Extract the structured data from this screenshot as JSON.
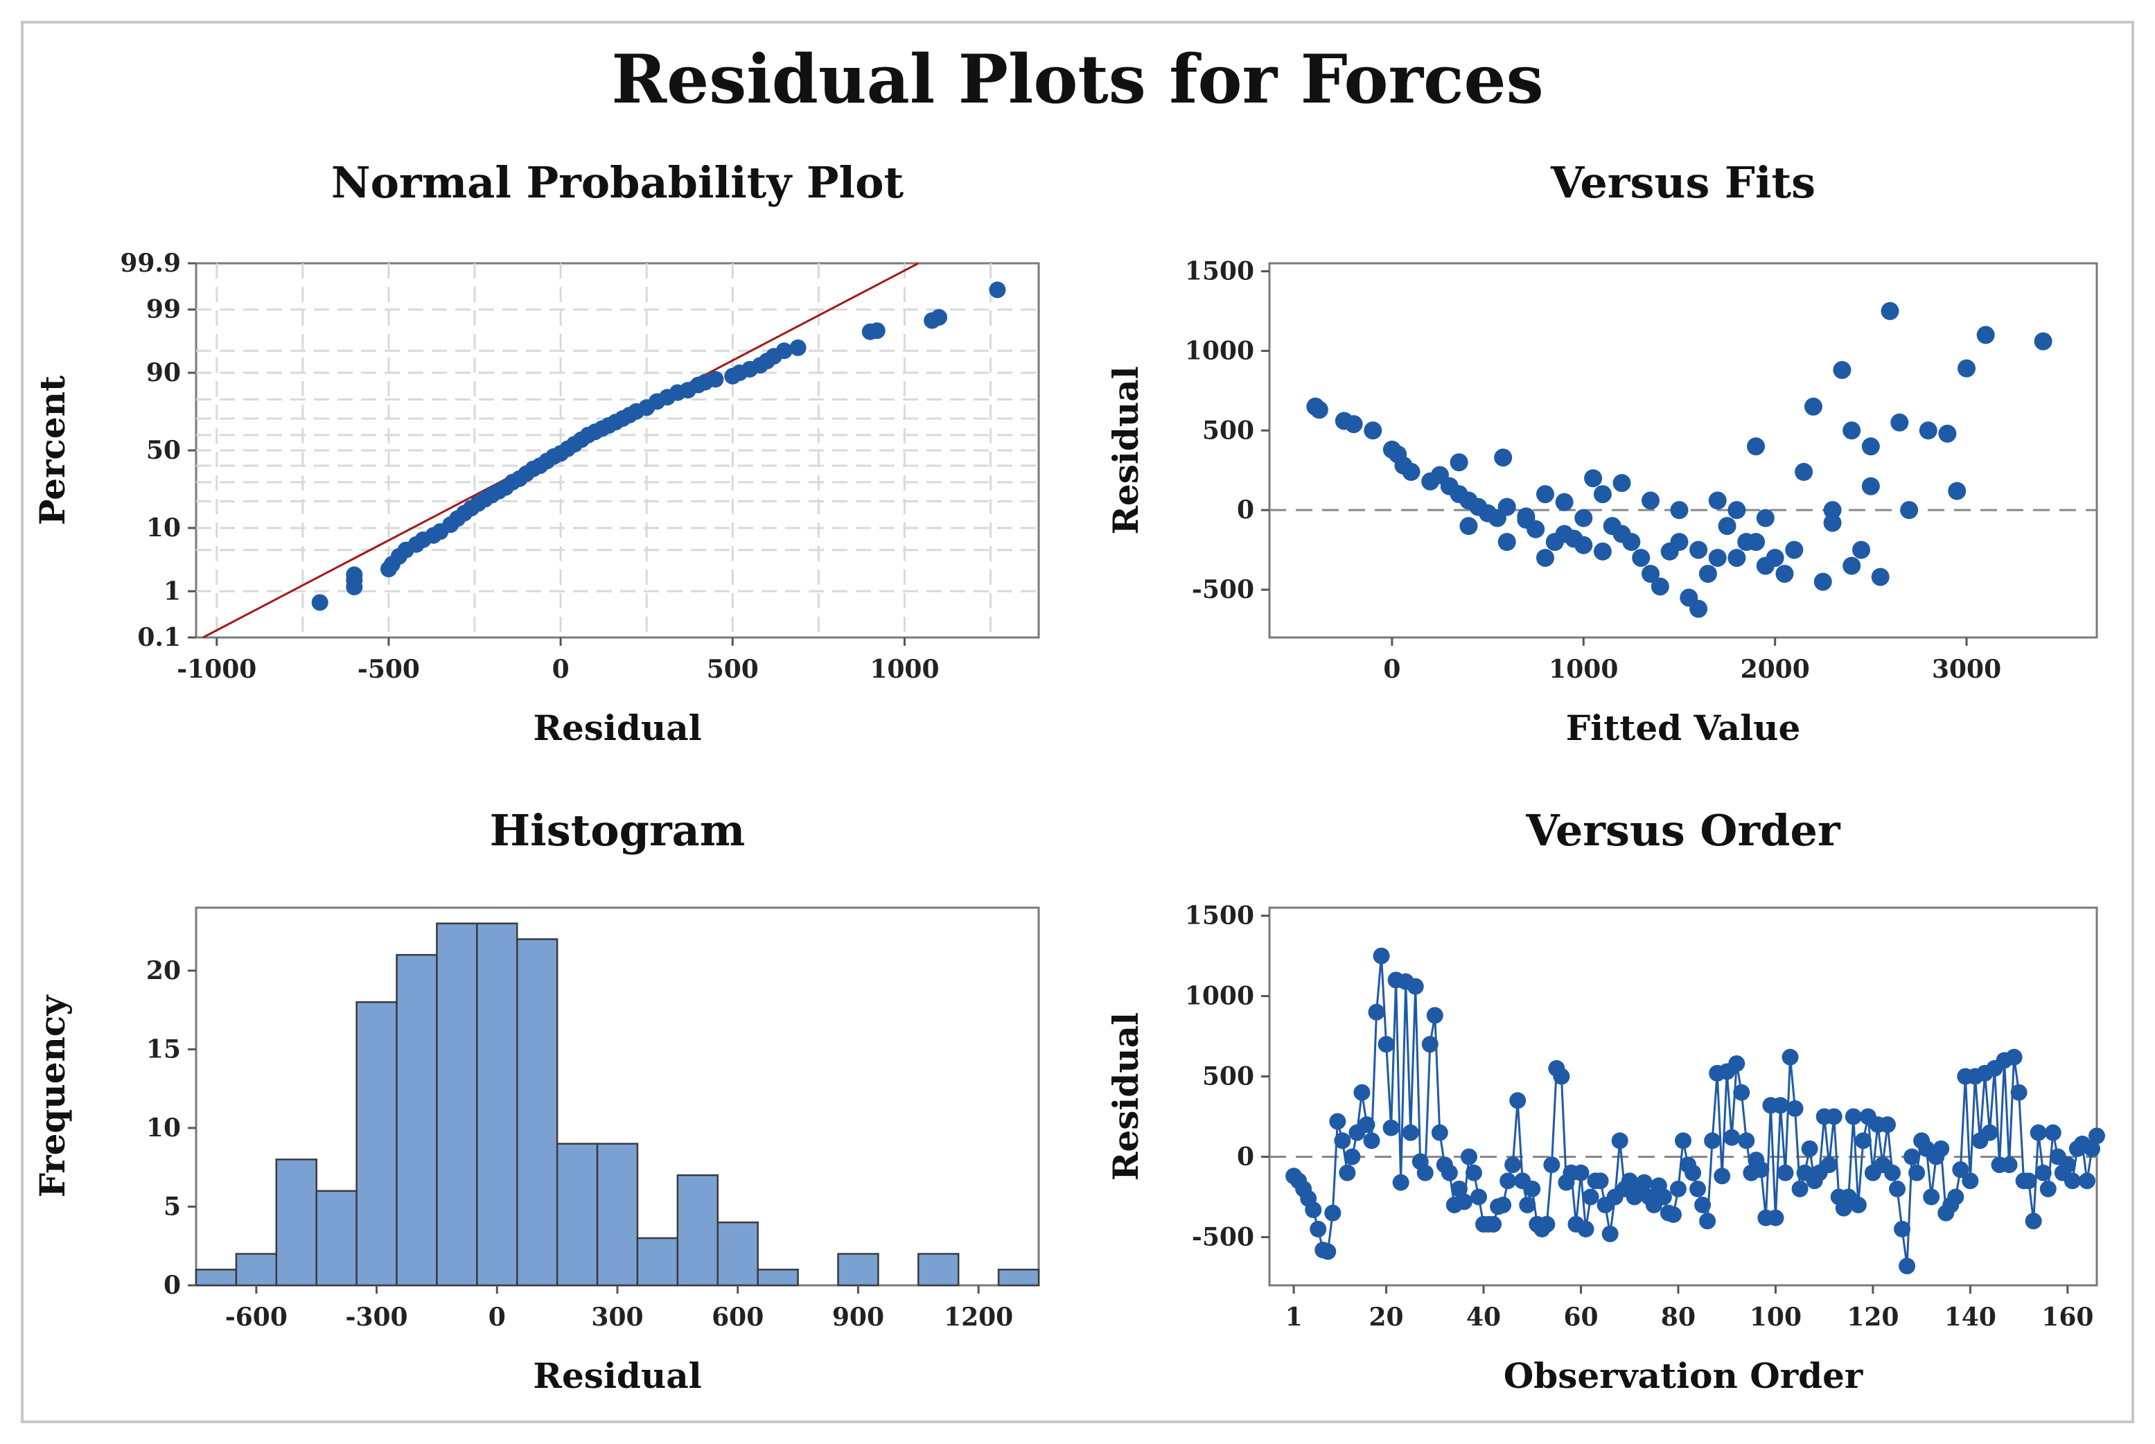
{
  "figure_title": "Residual Plots for Forces",
  "colors": {
    "point": "#1f5aa6",
    "bar_fill": "#7ba1d3",
    "bar_stroke": "#3b3b3b",
    "fit_line": "#a31919",
    "grid": "#d9d9d9",
    "ref_line": "#888888"
  },
  "chart_data": [
    {
      "id": "npp",
      "type": "scatter",
      "title": "Normal Probability Plot",
      "xlabel": "Residual",
      "ylabel": "Percent",
      "xlim": [
        -1060,
        1390
      ],
      "xticks": [
        -1000,
        -500,
        0,
        500,
        1000
      ],
      "xtick_labels": [
        "-1000",
        "-500",
        "0",
        "500",
        "1000"
      ],
      "yscale": "normal-probability",
      "yticks": [
        0.1,
        1,
        10,
        50,
        90,
        99,
        99.9
      ],
      "ytick_labels": [
        "0.1",
        "1",
        "10",
        "50",
        "90",
        "99",
        "99.9"
      ],
      "grid": true,
      "fit_line": {
        "x": [
          -1040,
          1040
        ],
        "percent": [
          0.1,
          99.9
        ]
      },
      "points": [
        [
          -700,
          0.6
        ],
        [
          -600,
          1.2
        ],
        [
          -600,
          1.6
        ],
        [
          -600,
          2.0
        ],
        [
          -500,
          2.5
        ],
        [
          -490,
          3.0
        ],
        [
          -470,
          4
        ],
        [
          -450,
          5
        ],
        [
          -420,
          6
        ],
        [
          -400,
          7
        ],
        [
          -370,
          8
        ],
        [
          -350,
          9
        ],
        [
          -320,
          11
        ],
        [
          -300,
          13
        ],
        [
          -280,
          15
        ],
        [
          -260,
          17
        ],
        [
          -240,
          19
        ],
        [
          -220,
          21
        ],
        [
          -200,
          23
        ],
        [
          -180,
          25
        ],
        [
          -160,
          27
        ],
        [
          -140,
          30
        ],
        [
          -120,
          32
        ],
        [
          -100,
          35
        ],
        [
          -80,
          38
        ],
        [
          -60,
          40
        ],
        [
          -40,
          43
        ],
        [
          -20,
          46
        ],
        [
          0,
          48
        ],
        [
          20,
          51
        ],
        [
          40,
          54
        ],
        [
          60,
          57
        ],
        [
          80,
          60
        ],
        [
          100,
          62
        ],
        [
          120,
          64
        ],
        [
          140,
          66
        ],
        [
          160,
          68
        ],
        [
          180,
          70
        ],
        [
          200,
          72
        ],
        [
          220,
          74
        ],
        [
          250,
          76
        ],
        [
          280,
          79
        ],
        [
          310,
          81
        ],
        [
          340,
          83
        ],
        [
          370,
          84
        ],
        [
          400,
          86
        ],
        [
          420,
          87
        ],
        [
          450,
          88
        ],
        [
          500,
          89
        ],
        [
          520,
          90
        ],
        [
          550,
          91
        ],
        [
          580,
          92
        ],
        [
          600,
          93
        ],
        [
          620,
          94
        ],
        [
          650,
          95
        ],
        [
          690,
          95.5
        ],
        [
          900,
          97.5
        ],
        [
          920,
          97.6
        ],
        [
          1080,
          98.4
        ],
        [
          1100,
          98.6
        ],
        [
          1270,
          99.6
        ]
      ]
    },
    {
      "id": "fits",
      "type": "scatter",
      "title": "Versus Fits",
      "xlabel": "Fitted Value",
      "ylabel": "Residual",
      "xlim": [
        -640,
        3680
      ],
      "ylim": [
        -800,
        1550
      ],
      "xticks": [
        0,
        1000,
        2000,
        3000
      ],
      "xtick_labels": [
        "0",
        "1000",
        "2000",
        "3000"
      ],
      "yticks": [
        -500,
        0,
        500,
        1000,
        1500
      ],
      "ytick_labels": [
        "-500",
        "0",
        "500",
        "1000",
        "1500"
      ],
      "reference_line": 0,
      "points": [
        [
          -400,
          650
        ],
        [
          -380,
          630
        ],
        [
          -250,
          560
        ],
        [
          -200,
          540
        ],
        [
          -100,
          500
        ],
        [
          0,
          380
        ],
        [
          30,
          350
        ],
        [
          60,
          280
        ],
        [
          100,
          240
        ],
        [
          200,
          180
        ],
        [
          300,
          150
        ],
        [
          350,
          100
        ],
        [
          400,
          60
        ],
        [
          450,
          20
        ],
        [
          500,
          -20
        ],
        [
          550,
          -50
        ],
        [
          580,
          330
        ],
        [
          600,
          20
        ],
        [
          700,
          -60
        ],
        [
          750,
          -120
        ],
        [
          800,
          100
        ],
        [
          850,
          -200
        ],
        [
          900,
          -150
        ],
        [
          950,
          -180
        ],
        [
          1000,
          -220
        ],
        [
          1050,
          200
        ],
        [
          1100,
          -260
        ],
        [
          1150,
          -100
        ],
        [
          1200,
          -150
        ],
        [
          1250,
          -200
        ],
        [
          1300,
          -300
        ],
        [
          1350,
          -400
        ],
        [
          1400,
          -480
        ],
        [
          1450,
          -260
        ],
        [
          1500,
          -200
        ],
        [
          1550,
          -550
        ],
        [
          1600,
          -620
        ],
        [
          1650,
          -400
        ],
        [
          1700,
          -300
        ],
        [
          1750,
          -100
        ],
        [
          1800,
          -300
        ],
        [
          1850,
          -200
        ],
        [
          1900,
          400
        ],
        [
          1950,
          -350
        ],
        [
          2000,
          -300
        ],
        [
          2050,
          -400
        ],
        [
          2100,
          -250
        ],
        [
          2150,
          240
        ],
        [
          2200,
          650
        ],
        [
          2250,
          -450
        ],
        [
          2300,
          0
        ],
        [
          2350,
          880
        ],
        [
          2400,
          500
        ],
        [
          2450,
          -250
        ],
        [
          2500,
          400
        ],
        [
          2550,
          -420
        ],
        [
          2600,
          1250
        ],
        [
          2650,
          550
        ],
        [
          2700,
          0
        ],
        [
          2800,
          500
        ],
        [
          2900,
          480
        ],
        [
          3000,
          890
        ],
        [
          3100,
          1100
        ],
        [
          3400,
          1060
        ],
        [
          2950,
          120
        ],
        [
          2400,
          -350
        ],
        [
          2500,
          150
        ],
        [
          700,
          -40
        ],
        [
          900,
          50
        ],
        [
          1200,
          170
        ],
        [
          1100,
          100
        ],
        [
          1350,
          60
        ],
        [
          1500,
          0
        ],
        [
          1700,
          60
        ],
        [
          1800,
          0
        ],
        [
          1950,
          -50
        ],
        [
          2300,
          -80
        ],
        [
          1600,
          -250
        ],
        [
          1000,
          -50
        ],
        [
          800,
          -300
        ],
        [
          600,
          -200
        ],
        [
          400,
          -100
        ],
        [
          250,
          220
        ],
        [
          350,
          300
        ],
        [
          1900,
          -200
        ]
      ]
    },
    {
      "id": "hist",
      "type": "bar",
      "title": "Histogram",
      "xlabel": "Residual",
      "ylabel": "Frequency",
      "xlim": [
        -750,
        1350
      ],
      "ylim": [
        0,
        24
      ],
      "bin_width": 100,
      "bin_starts": [
        -750,
        -650,
        -550,
        -450,
        -350,
        -250,
        -150,
        -50,
        50,
        150,
        250,
        350,
        450,
        550,
        650,
        750,
        850,
        950,
        1050,
        1150,
        1250
      ],
      "values": [
        1,
        2,
        8,
        6,
        18,
        21,
        23,
        23,
        22,
        9,
        9,
        3,
        7,
        4,
        1,
        0,
        2,
        0,
        2,
        0,
        1
      ],
      "xticks": [
        -600,
        -300,
        0,
        300,
        600,
        900,
        1200
      ],
      "xtick_labels": [
        "-600",
        "-300",
        "0",
        "300",
        "600",
        "900",
        "1200"
      ],
      "yticks": [
        0,
        5,
        10,
        15,
        20
      ],
      "ytick_labels": [
        "0",
        "5",
        "10",
        "15",
        "20"
      ]
    },
    {
      "id": "order",
      "type": "line",
      "title": "Versus Order",
      "xlabel": "Observation Order",
      "ylabel": "Residual",
      "xlim": [
        -4,
        166
      ],
      "ylim": [
        -800,
        1550
      ],
      "xticks": [
        1,
        20,
        40,
        60,
        80,
        100,
        120,
        140,
        160
      ],
      "xtick_labels": [
        "1",
        "20",
        "40",
        "60",
        "80",
        "100",
        "120",
        "140",
        "160"
      ],
      "yticks": [
        -500,
        0,
        500,
        1000,
        1500
      ],
      "ytick_labels": [
        "-500",
        "0",
        "500",
        "1000",
        "1500"
      ],
      "reference_line": 0,
      "values": [
        -120,
        -150,
        -200,
        -260,
        -330,
        -450,
        -580,
        -590,
        -350,
        220,
        100,
        -100,
        0,
        150,
        400,
        200,
        100,
        900,
        1250,
        700,
        180,
        1100,
        -160,
        1090,
        150,
        1060,
        -30,
        -100,
        700,
        880,
        150,
        -50,
        -100,
        -300,
        -200,
        -280,
        0,
        -100,
        -250,
        -420,
        -420,
        -420,
        -310,
        -300,
        -150,
        -50,
        350,
        -150,
        -300,
        -200,
        -420,
        -450,
        -420,
        -50,
        550,
        500,
        -160,
        -100,
        -420,
        -100,
        -450,
        -250,
        -150,
        -150,
        -300,
        -480,
        -250,
        100,
        -200,
        -150,
        -250,
        -200,
        -160,
        -250,
        -300,
        -180,
        -250,
        -350,
        -360,
        -200,
        100,
        -50,
        -100,
        -200,
        -300,
        -400,
        100,
        520,
        -120,
        530,
        120,
        580,
        400,
        100,
        -100,
        -20,
        -80,
        -380,
        320,
        -380,
        320,
        -100,
        620,
        300,
        -200,
        -100,
        50,
        -150,
        -100,
        250,
        -50,
        250,
        -250,
        -320,
        -250,
        250,
        -300,
        100,
        250,
        -100,
        200,
        -50,
        200,
        -100,
        -200,
        -450,
        -680,
        0,
        -100,
        100,
        50,
        -250,
        0,
        50,
        -350,
        -300,
        -250,
        -80,
        500,
        -150,
        500,
        100,
        520,
        150,
        550,
        -50,
        600,
        -50,
        620,
        400,
        -150,
        -150,
        -400,
        150,
        -100,
        -200,
        150,
        0,
        -100,
        -50,
        -150,
        50,
        80,
        -150,
        50,
        130
      ]
    }
  ]
}
